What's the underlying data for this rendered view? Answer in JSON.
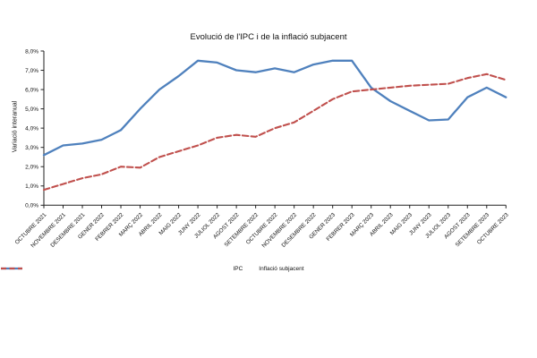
{
  "page": {
    "background": "#ffffff"
  },
  "chart_data": {
    "type": "line",
    "title": "Evolució de l'IPC i de la inflació subjacent",
    "ylabel": "Variació interanual",
    "xlabel": "",
    "ylim": [
      0,
      8
    ],
    "ytick_step": 1,
    "ytick_format": "0,0%",
    "grid": false,
    "legend_position": "bottom",
    "axis_color": "#222222",
    "categories": [
      "OCTUBRE 2021",
      "NOVEMBRE 2021",
      "DESEMBRE 2021",
      "GENER 2022",
      "FEBRER 2022",
      "MARÇ 2022",
      "ABRIL 2022",
      "MAIG 2022",
      "JUNY 2022",
      "JULIOL 2022",
      "AGOST 2022",
      "SETEMBRE 2022",
      "OCTUBRE 2022",
      "NOVEMBRE 2022",
      "DESEMBRE 2022",
      "GENER 2023",
      "FEBRER 2023",
      "MARÇ 2023",
      "ABRIL 2023",
      "MAIG 2023",
      "JUNY 2023",
      "JULIOL 2023",
      "AGOST 2023",
      "SETEMBRE 2023",
      "OCTUBRE 2023"
    ],
    "series": [
      {
        "name": "IPC",
        "color": "#4F81BD",
        "style": "solid",
        "values": [
          2.6,
          3.1,
          3.2,
          3.4,
          3.9,
          5.0,
          6.0,
          6.7,
          7.5,
          7.4,
          7.0,
          6.9,
          7.1,
          6.9,
          7.3,
          7.5,
          7.5,
          6.1,
          5.4,
          4.9,
          4.4,
          4.45,
          5.6,
          6.1,
          5.6
        ]
      },
      {
        "name": "Inflació subjacent",
        "color": "#C0504D",
        "style": "dashed",
        "values": [
          0.8,
          1.1,
          1.4,
          1.6,
          2.0,
          1.95,
          2.5,
          2.8,
          3.1,
          3.5,
          3.65,
          3.55,
          4.0,
          4.3,
          4.9,
          5.5,
          5.9,
          6.0,
          6.1,
          6.2,
          6.25,
          6.3,
          6.6,
          6.8,
          6.5
        ]
      }
    ]
  }
}
